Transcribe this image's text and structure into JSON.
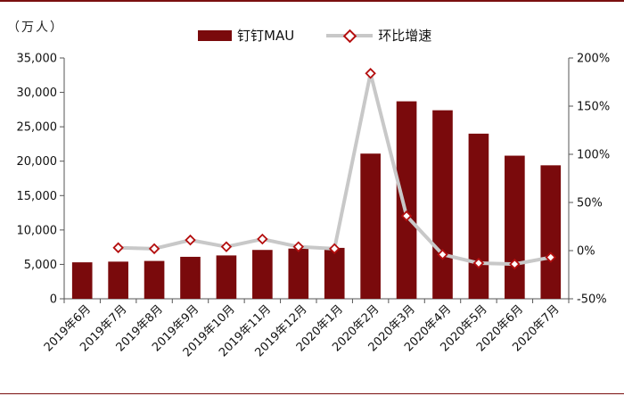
{
  "chart_data": {
    "type": "bar",
    "unit_label": "（万人）",
    "categories": [
      "2019年6月",
      "2019年7月",
      "2019年8月",
      "2019年9月",
      "2019年10月",
      "2019年11月",
      "2019年12月",
      "2020年1月",
      "2020年2月",
      "2020年3月",
      "2020年4月",
      "2020年5月",
      "2020年6月",
      "2020年7月"
    ],
    "series": [
      {
        "name": "钉钉MAU",
        "type": "bar",
        "axis": "left",
        "color": "#7a0a0c",
        "values": [
          5300,
          5400,
          5500,
          6100,
          6300,
          7100,
          7300,
          7400,
          21100,
          28700,
          27400,
          24000,
          20800,
          19400
        ]
      },
      {
        "name": "环比增速",
        "type": "line",
        "axis": "right",
        "color": "#c8c8c8",
        "marker_color": "#b40e0e",
        "values": [
          null,
          3,
          2,
          11,
          4,
          12,
          4,
          2,
          184,
          36,
          -4,
          -13,
          -14,
          -7
        ]
      }
    ],
    "y_left": {
      "ylim": [
        0,
        35000
      ],
      "ticks": [
        "0",
        "5,000",
        "10,000",
        "15,000",
        "20,000",
        "25,000",
        "30,000",
        "35,000"
      ],
      "tick_values": [
        0,
        5000,
        10000,
        15000,
        20000,
        25000,
        30000,
        35000
      ]
    },
    "y_right": {
      "ylim": [
        -50,
        200
      ],
      "ticks": [
        "-50%",
        "0%",
        "50%",
        "100%",
        "150%",
        "200%"
      ],
      "tick_values": [
        -50,
        0,
        50,
        100,
        150,
        200
      ]
    },
    "grid": false,
    "legend_position": "top"
  }
}
